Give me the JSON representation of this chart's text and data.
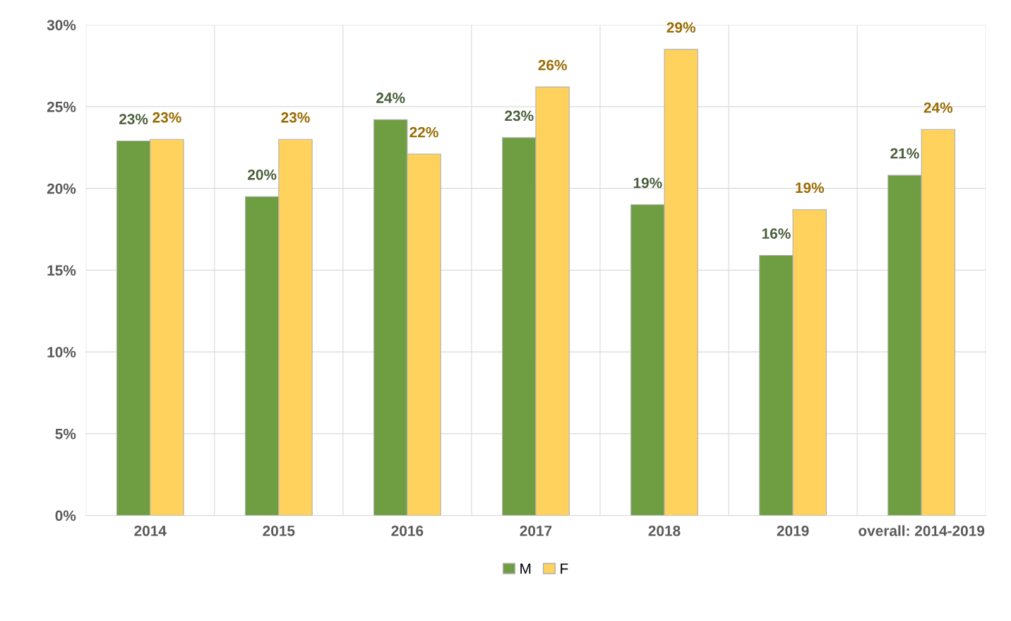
{
  "chart_data": {
    "type": "bar",
    "categories": [
      "2014",
      "2015",
      "2016",
      "2017",
      "2018",
      "2019",
      "overall: 2014-2019"
    ],
    "series": [
      {
        "name": "M",
        "color": "#6e9d42",
        "values": [
          22.9,
          19.5,
          24.2,
          23.1,
          19.0,
          15.9,
          20.8
        ],
        "value_labels": [
          "23%",
          "20%",
          "24%",
          "23%",
          "19%",
          "16%",
          "21%"
        ]
      },
      {
        "name": "F",
        "color": "#ffd25e",
        "values": [
          23.0,
          23.0,
          22.1,
          26.2,
          28.5,
          18.7,
          23.6
        ],
        "value_labels": [
          "23%",
          "23%",
          "22%",
          "26%",
          "29%",
          "19%",
          "24%"
        ]
      }
    ],
    "ylim": [
      0,
      30
    ],
    "yticks": [
      {
        "value": 0,
        "label": "0%"
      },
      {
        "value": 5,
        "label": "5%"
      },
      {
        "value": 10,
        "label": "10%"
      },
      {
        "value": 15,
        "label": "15%"
      },
      {
        "value": 20,
        "label": "20%"
      },
      {
        "value": 25,
        "label": "25%"
      },
      {
        "value": 30,
        "label": "30%"
      }
    ],
    "grid": true,
    "legend": "bottom"
  }
}
